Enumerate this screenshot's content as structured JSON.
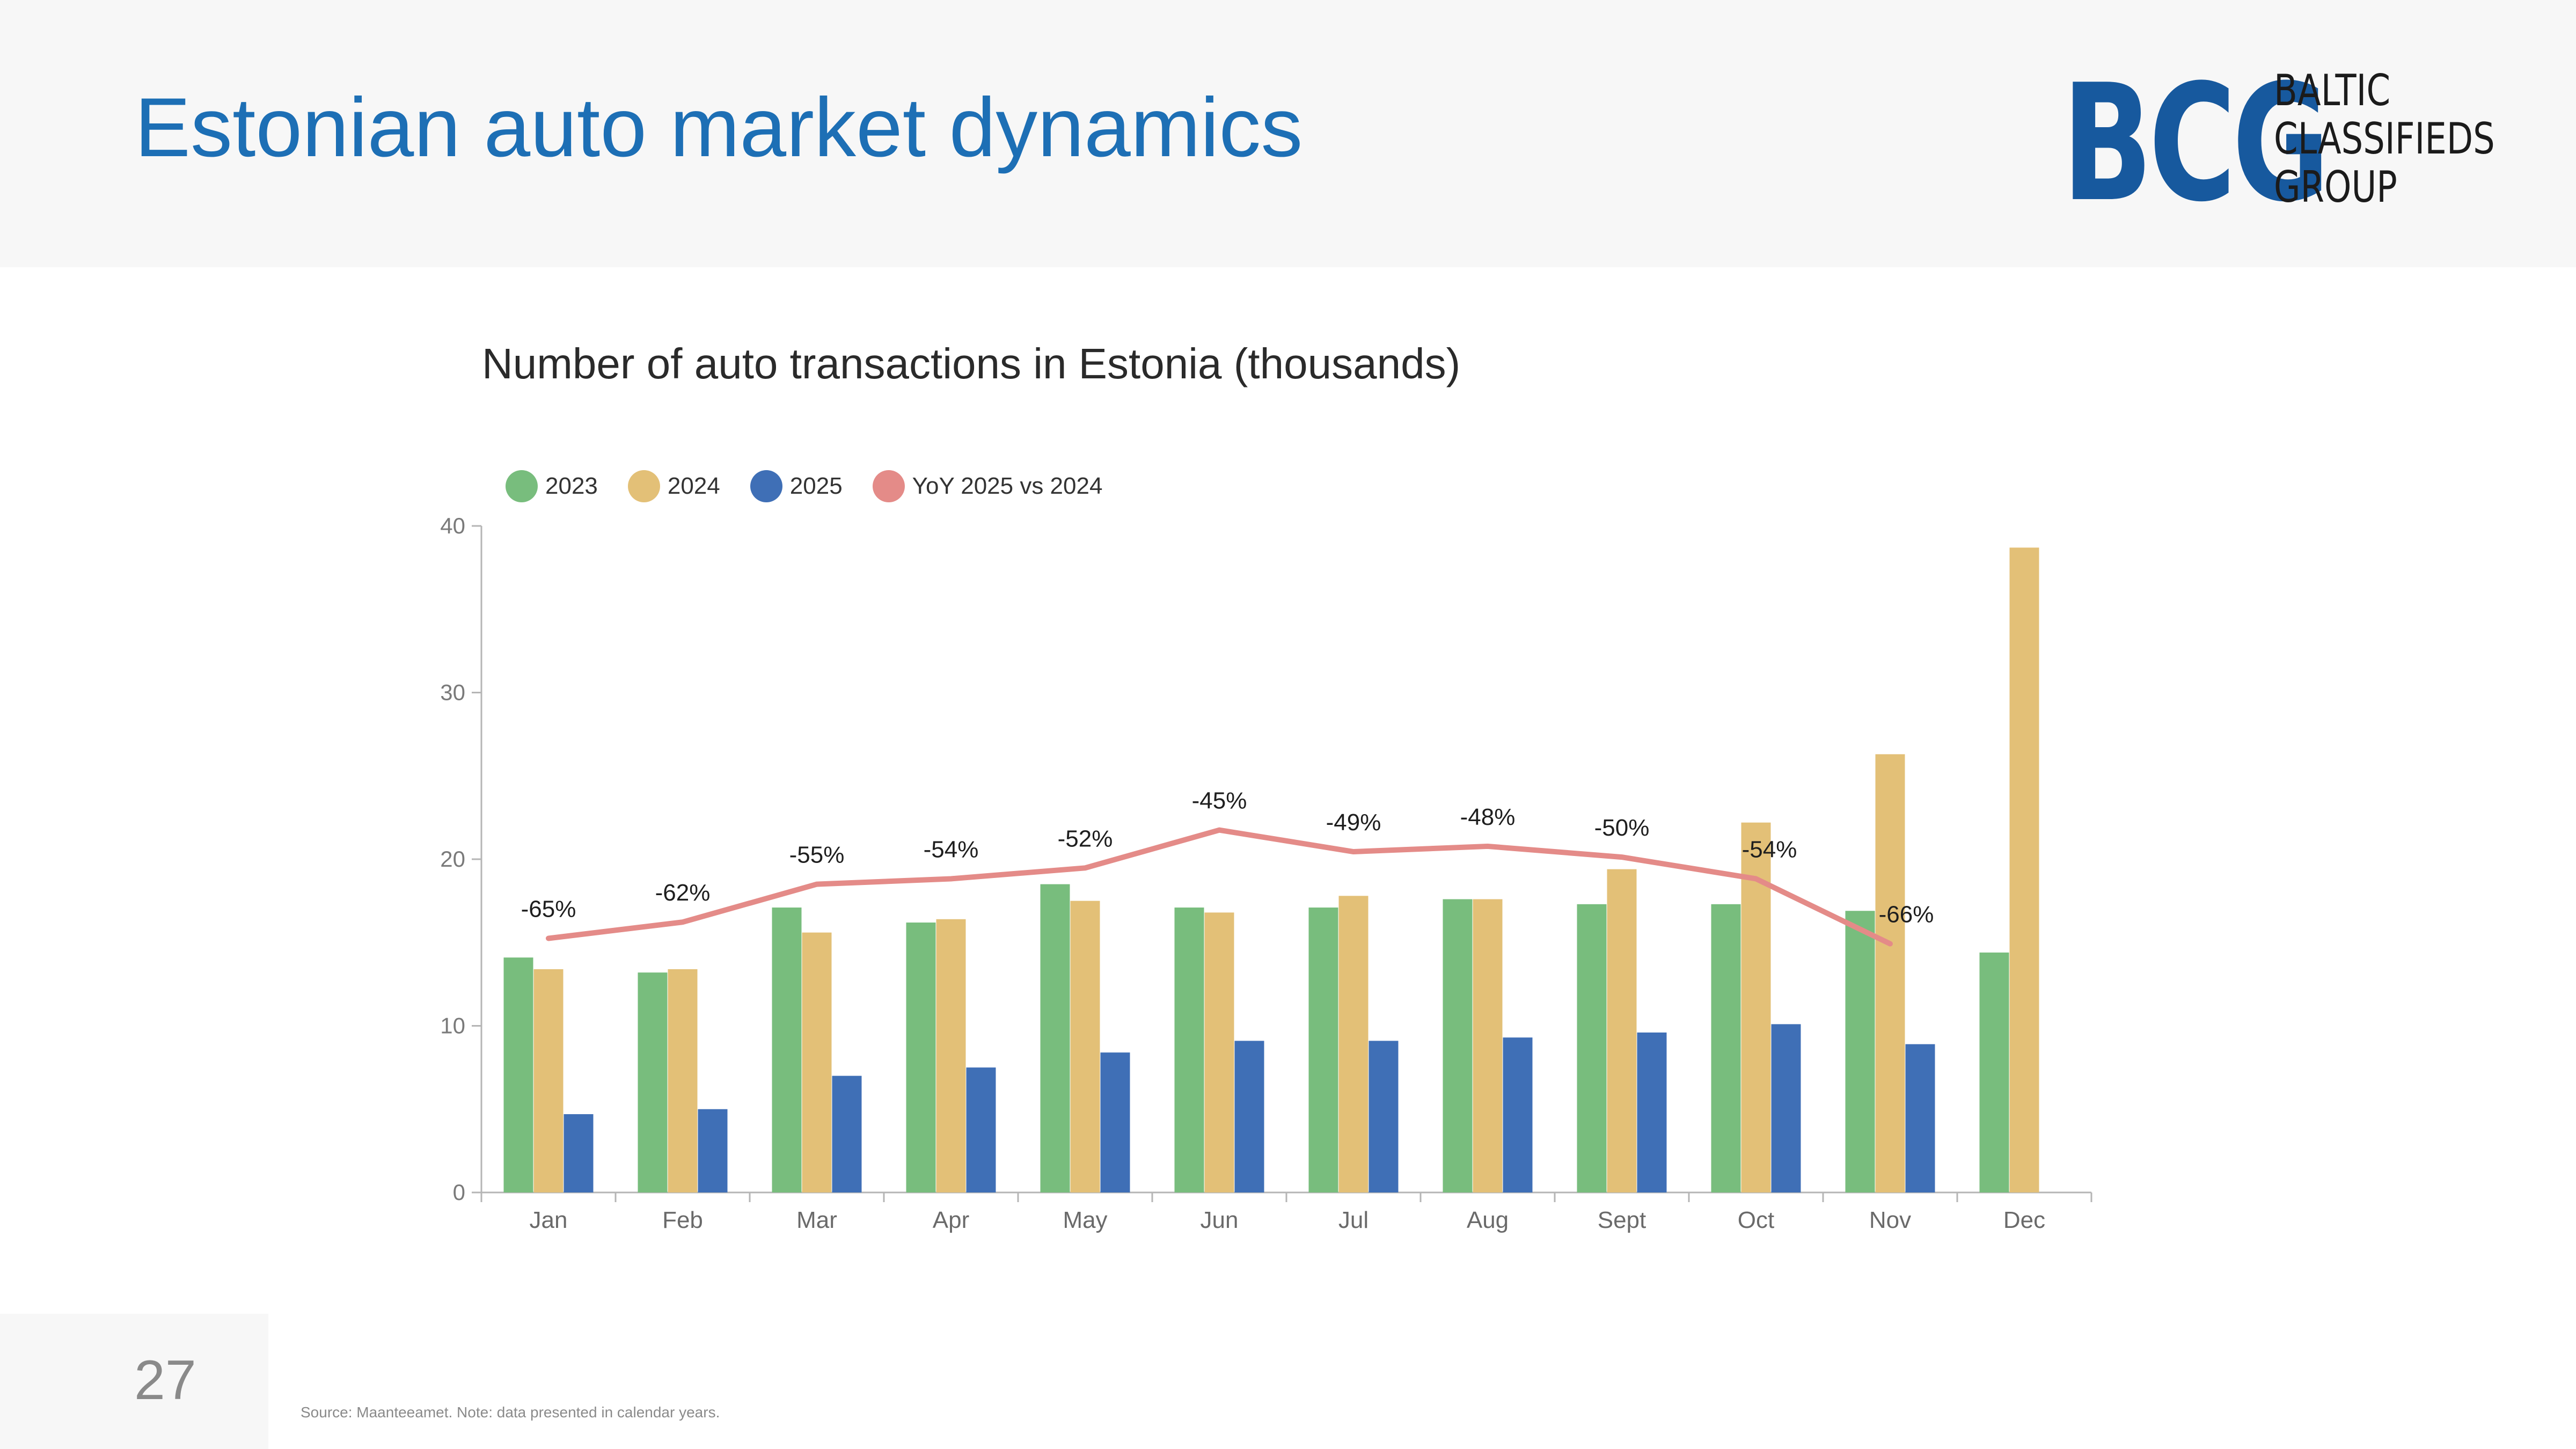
{
  "slide": {
    "title": "Estonian auto market dynamics",
    "page_number": "27",
    "source_note": "Source: Maanteeamet. Note: data presented in calendar years."
  },
  "logo": {
    "mark": "BCG",
    "lines": [
      "BALTIC",
      "CLASSIFIEDS",
      "GROUP"
    ]
  },
  "colors": {
    "title": "#1d6fb5",
    "s2023": "#78bd7d",
    "s2024": "#e3c077",
    "s2025": "#3f6fb6",
    "yoy": "#e48b88"
  },
  "chart_data": {
    "type": "bar",
    "title": "Number of auto transactions in Estonia (thousands)",
    "categories": [
      "Jan",
      "Feb",
      "Mar",
      "Apr",
      "May",
      "Jun",
      "Jul",
      "Aug",
      "Sept",
      "Oct",
      "Nov",
      "Dec"
    ],
    "ylim": [
      0,
      40
    ],
    "yticks": [
      0,
      10,
      20,
      30,
      40
    ],
    "grid": false,
    "legend_position": "top-left",
    "series": [
      {
        "name": "2023",
        "values": [
          14.1,
          13.2,
          17.1,
          16.2,
          18.5,
          17.1,
          17.1,
          17.6,
          17.3,
          17.3,
          16.9,
          14.4
        ]
      },
      {
        "name": "2024",
        "values": [
          13.4,
          13.4,
          15.6,
          16.4,
          17.5,
          16.8,
          17.8,
          17.6,
          19.4,
          22.2,
          26.3,
          38.7
        ]
      },
      {
        "name": "2025",
        "values": [
          4.7,
          5.0,
          7.0,
          7.5,
          8.4,
          9.1,
          9.1,
          9.3,
          9.6,
          10.1,
          8.9,
          null
        ]
      }
    ],
    "line_series": {
      "name": "YoY 2025 vs 2024",
      "labels": [
        "-65%",
        "-62%",
        "-55%",
        "-54%",
        "-52%",
        "-45%",
        "-49%",
        "-48%",
        "-50%",
        "-54%",
        "-66%",
        ""
      ],
      "values": [
        -65,
        -62,
        -55,
        -54,
        -52,
        -45,
        -49,
        -48,
        -50,
        -54,
        -66,
        null
      ]
    }
  }
}
